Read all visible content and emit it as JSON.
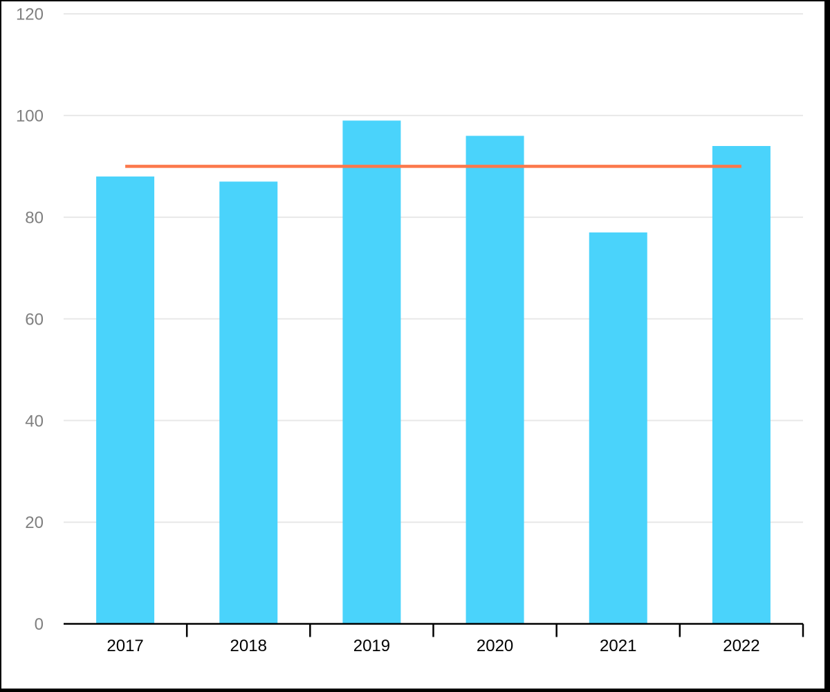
{
  "chart_data": {
    "type": "bar",
    "categories": [
      "2017",
      "2018",
      "2019",
      "2020",
      "2021",
      "2022"
    ],
    "series": [
      {
        "name": "bars",
        "type": "bar",
        "values": [
          88,
          87,
          99,
          96,
          77,
          94
        ],
        "color": "#4AD3FB"
      },
      {
        "name": "reference-line",
        "type": "line",
        "values": [
          90,
          90,
          90,
          90,
          90,
          90
        ],
        "color": "#FC784B"
      }
    ],
    "title": "",
    "xlabel": "",
    "ylabel": "",
    "ylim": [
      0,
      120
    ],
    "yticks": [
      0,
      20,
      40,
      60,
      80,
      100,
      120
    ],
    "grid": true,
    "legend_position": "none"
  },
  "colors": {
    "bar": "#4AD3FB",
    "line": "#FC784B",
    "gridline": "#E8E8E8",
    "axis": "#000000",
    "y_tick_label": "#7F7F7F",
    "x_tick_label": "#000000",
    "plot_background": "#FFFFFF",
    "frame_border": "#000000"
  }
}
